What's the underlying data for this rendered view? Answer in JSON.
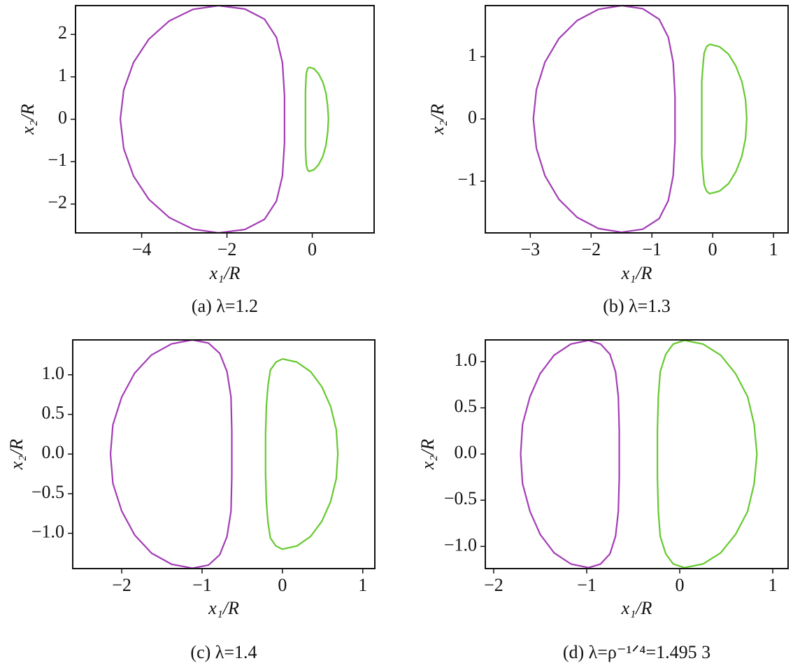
{
  "chart_data": [
    {
      "type": "line",
      "xlabel": "x₁/R",
      "ylabel": "x₂/R",
      "caption": "(a) λ=1.2",
      "xlim": [
        -5.55,
        1.45
      ],
      "ylim": [
        -2.68,
        2.68
      ],
      "xticks": [
        {
          "value": -4,
          "label": "−4"
        },
        {
          "value": -2,
          "label": "−2"
        },
        0
      ],
      "yticks": [
        {
          "value": -2,
          "label": "−2"
        },
        {
          "value": -1,
          "label": "−1"
        },
        0,
        1,
        2
      ],
      "series": [
        {
          "color": "#a33db5",
          "x": [
            -2.2,
            -2.8,
            -3.35,
            -3.83,
            -4.19,
            -4.42,
            -4.5,
            -4.42,
            -4.19,
            -3.83,
            -3.35,
            -2.8,
            -2.2,
            -1.58,
            -1.12,
            -0.84,
            -0.7,
            -0.65,
            -0.65,
            -0.65,
            -0.7,
            -0.84,
            -1.12,
            -1.58,
            -2.2
          ],
          "values": [
            2.68,
            2.59,
            2.32,
            1.89,
            1.34,
            0.69,
            0,
            -0.69,
            -1.34,
            -1.89,
            -2.32,
            -2.59,
            -2.68,
            -2.6,
            -2.36,
            -1.93,
            -1.34,
            -0.54,
            0,
            0.54,
            1.34,
            1.93,
            2.36,
            2.6,
            2.68
          ]
        },
        {
          "color": "#66c92f",
          "x": [
            -0.08,
            0.04,
            0.15,
            0.25,
            0.32,
            0.36,
            0.38,
            0.36,
            0.32,
            0.25,
            0.15,
            0.04,
            -0.08,
            -0.11,
            -0.14,
            -0.15,
            -0.16,
            -0.16,
            -0.16,
            -0.16,
            -0.16,
            -0.15,
            -0.14,
            -0.11,
            -0.08
          ],
          "values": [
            1.23,
            1.19,
            1.07,
            0.87,
            0.62,
            0.32,
            0,
            -0.32,
            -0.62,
            -0.87,
            -1.07,
            -1.19,
            -1.23,
            -1.19,
            -1.08,
            -0.89,
            -0.62,
            -0.25,
            0,
            0.25,
            0.62,
            0.89,
            1.08,
            1.19,
            1.23
          ]
        }
      ]
    },
    {
      "type": "line",
      "xlabel": "x₁/R",
      "ylabel": "x₂/R",
      "caption": "(b) λ=1.3",
      "xlim": [
        -3.74,
        1.24
      ],
      "ylim": [
        -1.83,
        1.82
      ],
      "xticks": [
        {
          "value": -3,
          "label": "−3"
        },
        {
          "value": -2,
          "label": "−2"
        },
        {
          "value": -1,
          "label": "−1"
        },
        0,
        1
      ],
      "yticks": [
        {
          "value": -1,
          "label": "−1"
        },
        0,
        1
      ],
      "series": [
        {
          "color": "#a33db5",
          "x": [
            -1.5,
            -1.88,
            -2.23,
            -2.53,
            -2.76,
            -2.9,
            -2.95,
            -2.9,
            -2.76,
            -2.53,
            -2.23,
            -1.88,
            -1.5,
            -1.15,
            -0.88,
            -0.73,
            -0.65,
            -0.62,
            -0.62,
            -0.62,
            -0.65,
            -0.73,
            -0.88,
            -1.15,
            -1.5
          ],
          "values": [
            1.82,
            1.76,
            1.58,
            1.29,
            0.91,
            0.47,
            0,
            -0.47,
            -0.91,
            -1.29,
            -1.58,
            -1.76,
            -1.82,
            -1.77,
            -1.6,
            -1.31,
            -0.91,
            -0.36,
            0,
            0.36,
            0.91,
            1.31,
            1.6,
            1.77,
            1.82
          ]
        },
        {
          "color": "#66c92f",
          "x": [
            -0.05,
            0.11,
            0.26,
            0.38,
            0.48,
            0.54,
            0.56,
            0.54,
            0.48,
            0.38,
            0.26,
            0.11,
            -0.05,
            -0.1,
            -0.14,
            -0.16,
            -0.18,
            -0.18,
            -0.18,
            -0.18,
            -0.18,
            -0.16,
            -0.14,
            -0.1,
            -0.05
          ],
          "values": [
            1.2,
            1.16,
            1.04,
            0.85,
            0.6,
            0.31,
            0,
            -0.31,
            -0.6,
            -0.85,
            -1.04,
            -1.16,
            -1.2,
            -1.16,
            -1.06,
            -0.86,
            -0.6,
            -0.24,
            0,
            0.24,
            0.6,
            0.86,
            1.06,
            1.16,
            1.2
          ]
        }
      ]
    },
    {
      "type": "line",
      "xlabel": "x₁/R",
      "ylabel": "x₂/R",
      "caption": "(c) λ=1.4",
      "xlim": [
        -2.61,
        1.15
      ],
      "ylim": [
        -1.445,
        1.44
      ],
      "xticks": [
        {
          "value": -2,
          "label": "−2"
        },
        {
          "value": -1,
          "label": "−1"
        },
        0,
        1
      ],
      "yticks": [
        {
          "value": 1,
          "label": "1.0"
        },
        0.5,
        {
          "value": 0,
          "label": "0.0"
        },
        {
          "value": -0.5,
          "label": "−0.5"
        },
        {
          "value": -1,
          "label": "−1.0"
        }
      ],
      "series": [
        {
          "color": "#a33db5",
          "x": [
            -1.12,
            -1.38,
            -1.63,
            -1.84,
            -2,
            -2.11,
            -2.14,
            -2.11,
            -2,
            -1.84,
            -1.63,
            -1.38,
            -1.12,
            -0.92,
            -0.78,
            -0.69,
            -0.64,
            -0.63,
            -0.63,
            -0.63,
            -0.64,
            -0.69,
            -0.78,
            -0.92,
            -1.12
          ],
          "values": [
            1.44,
            1.39,
            1.25,
            1.02,
            0.72,
            0.37,
            0,
            -0.37,
            -0.72,
            -1.02,
            -1.25,
            -1.39,
            -1.44,
            -1.4,
            -1.27,
            -1.04,
            -0.72,
            -0.29,
            0,
            0.29,
            0.72,
            1.04,
            1.27,
            1.4,
            1.44
          ]
        },
        {
          "color": "#66c92f",
          "x": [
            0,
            0.18,
            0.35,
            0.49,
            0.6,
            0.67,
            0.69,
            0.67,
            0.6,
            0.49,
            0.35,
            0.18,
            0,
            -0.08,
            -0.15,
            -0.18,
            -0.2,
            -0.21,
            -0.21,
            -0.21,
            -0.2,
            -0.18,
            -0.15,
            -0.08,
            0
          ],
          "values": [
            1.2,
            1.16,
            1.04,
            0.85,
            0.6,
            0.31,
            0,
            -0.31,
            -0.6,
            -0.85,
            -1.04,
            -1.16,
            -1.2,
            -1.16,
            -1.06,
            -0.86,
            -0.6,
            -0.24,
            0,
            0.24,
            0.6,
            0.86,
            1.06,
            1.16,
            1.2
          ]
        }
      ]
    },
    {
      "type": "line",
      "xlabel": "x₁/R",
      "ylabel": "x₂/R",
      "caption": "(d) λ=ρ⁻¹ᐟ⁴=1.495 3",
      "xlim": [
        -2.09,
        1.165
      ],
      "ylim": [
        -1.24,
        1.235
      ],
      "xticks": [
        {
          "value": -2,
          "label": "−2"
        },
        {
          "value": -1,
          "label": "−1"
        },
        0,
        1
      ],
      "yticks": [
        {
          "value": 1,
          "label": "1.0"
        },
        0.5,
        {
          "value": 0,
          "label": "0.0"
        },
        {
          "value": -0.5,
          "label": "−0.5"
        },
        {
          "value": -1,
          "label": "−1.0"
        }
      ],
      "series": [
        {
          "color": "#a33db5",
          "x": [
            -0.98,
            -1.17,
            -1.35,
            -1.5,
            -1.61,
            -1.69,
            -1.71,
            -1.69,
            -1.61,
            -1.5,
            -1.35,
            -1.17,
            -0.98,
            -0.85,
            -0.75,
            -0.69,
            -0.66,
            -0.65,
            -0.65,
            -0.65,
            -0.66,
            -0.69,
            -0.75,
            -0.85,
            -0.98
          ],
          "values": [
            1.23,
            1.19,
            1.07,
            0.87,
            0.62,
            0.32,
            0,
            -0.32,
            -0.62,
            -0.87,
            -1.07,
            -1.19,
            -1.23,
            -1.19,
            -1.08,
            -0.89,
            -0.62,
            -0.25,
            0,
            0.25,
            0.62,
            0.89,
            1.08,
            1.19,
            1.23
          ]
        },
        {
          "color": "#66c92f",
          "x": [
            0.05,
            0.25,
            0.44,
            0.6,
            0.73,
            0.8,
            0.83,
            0.8,
            0.73,
            0.6,
            0.44,
            0.25,
            0.05,
            -0.07,
            -0.15,
            -0.21,
            -0.23,
            -0.24,
            -0.24,
            -0.24,
            -0.23,
            -0.21,
            -0.15,
            -0.07,
            0.05
          ],
          "values": [
            1.23,
            1.19,
            1.07,
            0.87,
            0.62,
            0.32,
            0,
            -0.32,
            -0.62,
            -0.87,
            -1.07,
            -1.19,
            -1.23,
            -1.19,
            -1.08,
            -0.89,
            -0.62,
            -0.25,
            0,
            0.25,
            0.62,
            0.89,
            1.08,
            1.19,
            1.23
          ]
        }
      ]
    }
  ]
}
